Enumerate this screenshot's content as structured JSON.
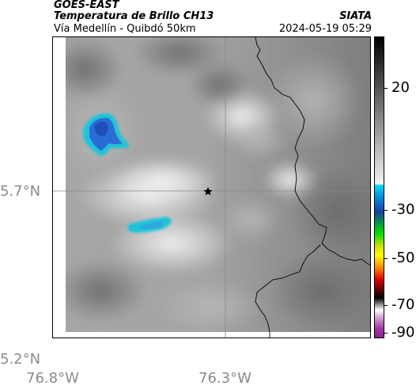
{
  "header": {
    "satellite": "GOES-EAST",
    "product": "Temperatura de Brillo CH13",
    "subtitle": "Vía Medellín - Quibdó 50km",
    "brand": "SIATA",
    "timestamp": "2024-05-19 05:29"
  },
  "axes": {
    "lat_labels": [
      "5.7°N",
      "5.2°N"
    ],
    "lon_labels": [
      "76.8°W",
      "76.3°W"
    ]
  },
  "colorbar": {
    "labels": [
      "20",
      "-30",
      "-50",
      "-70",
      "-90"
    ],
    "values": [
      20,
      -30,
      -50,
      -70,
      -90
    ],
    "range": [
      -95,
      45
    ],
    "unit": ""
  },
  "map": {
    "marker": "star-icon",
    "colors": {
      "cloud_cold": "#2a6bd6",
      "cloud_cyan": "#1fc3d9",
      "background_gray": "#8c8c8c",
      "border_line": "#000000"
    }
  }
}
